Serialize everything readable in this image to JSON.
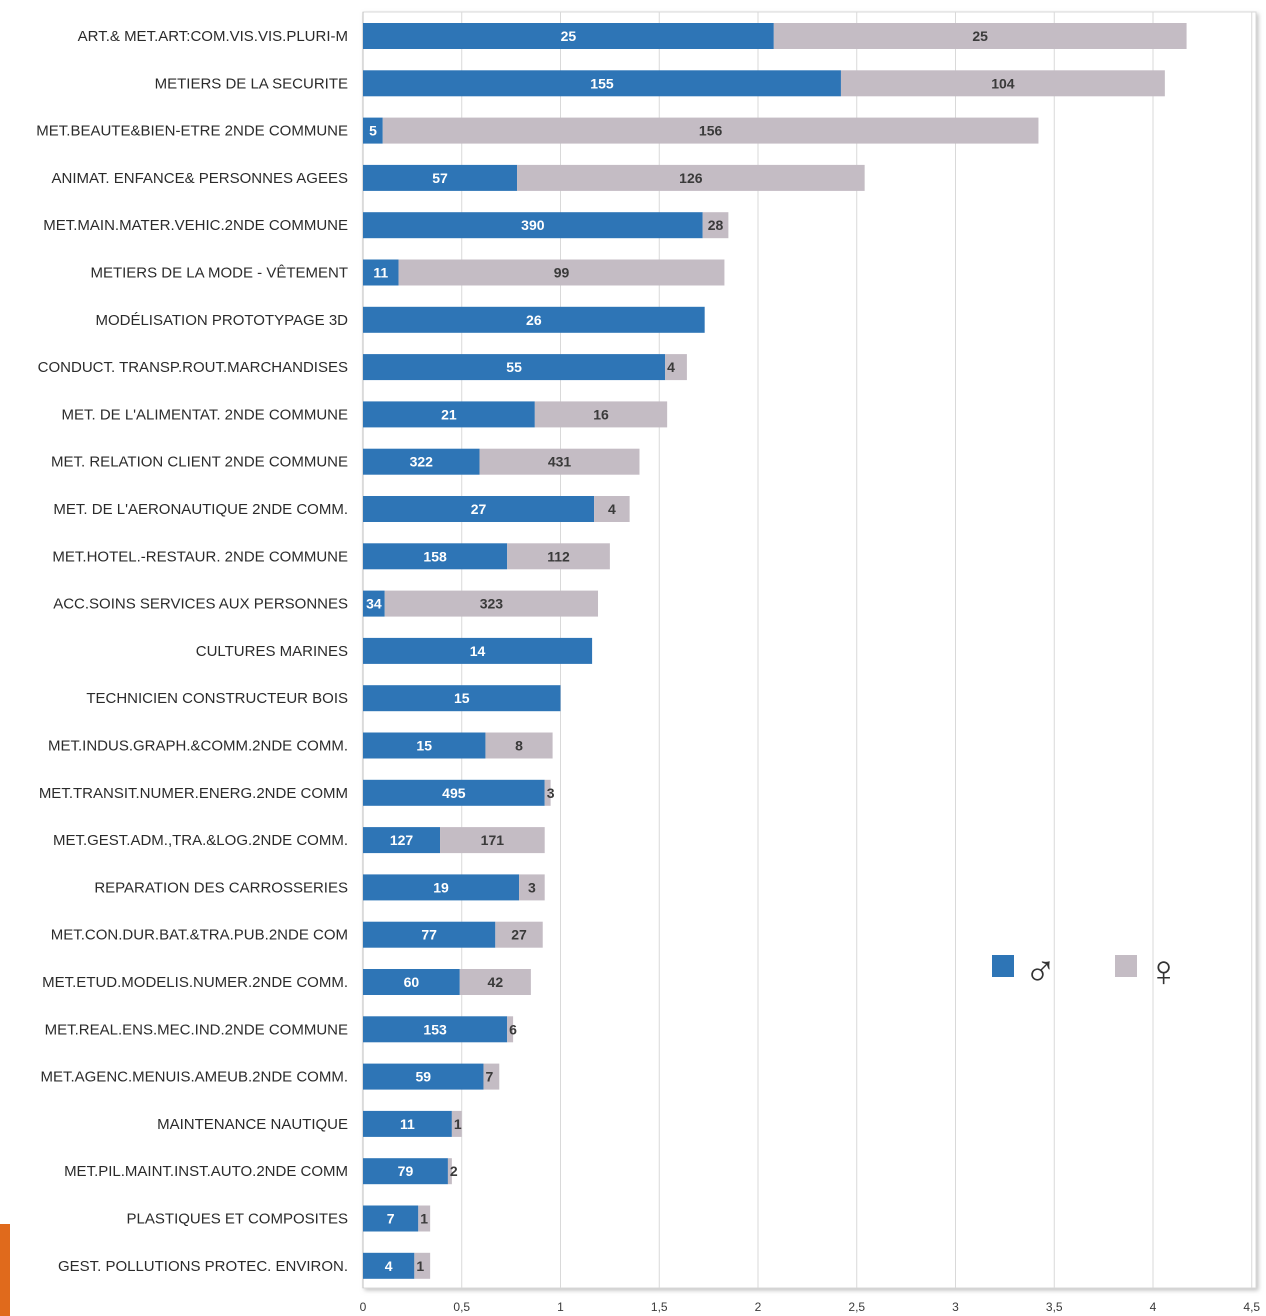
{
  "chart_data": {
    "type": "bar",
    "orientation": "horizontal",
    "stacked": true,
    "title": "",
    "xlabel": "",
    "ylabel": "",
    "xlim": [
      0,
      4.5
    ],
    "xticks": [
      "0",
      "0,5",
      "1",
      "1,5",
      "2",
      "2,5",
      "3",
      "3,5",
      "4",
      "4,5"
    ],
    "grid": true,
    "legend_position": "right",
    "categories": [
      "ART.& MET.ART:COM.VIS.VIS.PLURI-M",
      "METIERS DE LA SECURITE",
      "MET.BEAUTE&BIEN-ETRE 2NDE COMMUNE",
      "ANIMAT. ENFANCE& PERSONNES AGEES",
      "MET.MAIN.MATER.VEHIC.2NDE COMMUNE",
      "METIERS DE LA MODE - VÊTEMENT",
      "MODÉLISATION PROTOTYPAGE 3D",
      "CONDUCT. TRANSP.ROUT.MARCHANDISES",
      "MET. DE L'ALIMENTAT. 2NDE COMMUNE",
      "MET. RELATION CLIENT 2NDE COMMUNE",
      "MET. DE L'AERONAUTIQUE 2NDE COMM.",
      "MET.HOTEL.-RESTAUR. 2NDE COMMUNE",
      "ACC.SOINS SERVICES AUX PERSONNES",
      "CULTURES MARINES",
      "TECHNICIEN CONSTRUCTEUR BOIS",
      "MET.INDUS.GRAPH.&COMM.2NDE COMM.",
      "MET.TRANSIT.NUMER.ENERG.2NDE COMM",
      "MET.GEST.ADM.,TRA.&LOG.2NDE COMM.",
      "REPARATION DES CARROSSERIES",
      "MET.CON.DUR.BAT.&TRA.PUB.2NDE COM",
      "MET.ETUD.MODELIS.NUMER.2NDE COMM.",
      "MET.REAL.ENS.MEC.IND.2NDE COMMUNE",
      "MET.AGENC.MENUIS.AMEUB.2NDE COMM.",
      "MAINTENANCE NAUTIQUE",
      "MET.PIL.MAINT.INST.AUTO.2NDE COMM",
      "PLASTIQUES ET COMPOSITES",
      "GEST. POLLUTIONS PROTEC. ENVIRON."
    ],
    "series": [
      {
        "name": "♂",
        "color": "#2e75b6",
        "label_color": "#ffffff",
        "values": [
          2.08,
          2.42,
          0.1,
          0.78,
          1.72,
          0.18,
          1.73,
          1.53,
          0.87,
          0.59,
          1.17,
          0.73,
          0.11,
          1.16,
          1.0,
          0.62,
          0.92,
          0.39,
          0.79,
          0.67,
          0.49,
          0.73,
          0.61,
          0.45,
          0.43,
          0.28,
          0.26
        ],
        "labels": [
          "25",
          "155",
          "5",
          "57",
          "390",
          "11",
          "26",
          "55",
          "21",
          "322",
          "27",
          "158",
          "34",
          "14",
          "15",
          "15",
          "495",
          "127",
          "19",
          "77",
          "60",
          "153",
          "59",
          "11",
          "79",
          "7",
          "4"
        ]
      },
      {
        "name": "♀",
        "color": "#c4bcc4",
        "label_color": "#3a3a3a",
        "values": [
          2.09,
          1.64,
          3.32,
          1.76,
          0.13,
          1.65,
          0,
          0.11,
          0.67,
          0.81,
          0.18,
          0.52,
          1.08,
          0,
          0,
          0.34,
          0.03,
          0.53,
          0.13,
          0.24,
          0.36,
          0.03,
          0.08,
          0.05,
          0.02,
          0.06,
          0.08
        ],
        "labels": [
          "25",
          "104",
          "156",
          "126",
          "28",
          "99",
          "",
          "4",
          "16",
          "431",
          "4",
          "112",
          "323",
          "",
          "",
          "8",
          "3",
          "171",
          "3",
          "27",
          "42",
          "6",
          "7",
          "1",
          "2",
          "1",
          "1"
        ]
      }
    ],
    "legend": {
      "male_symbol": "♂",
      "female_symbol": "♀"
    }
  }
}
